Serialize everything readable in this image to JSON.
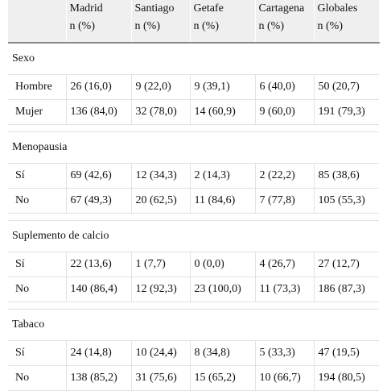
{
  "table": {
    "headers": [
      {
        "top": "",
        "bottom": ""
      },
      {
        "top": "Madrid",
        "bottom": "n (%)"
      },
      {
        "top": "Santiago",
        "bottom": "n (%)"
      },
      {
        "top": "Getafe",
        "bottom": "n (%)"
      },
      {
        "top": "Cartagena",
        "bottom": "n (%)"
      },
      {
        "top": "Globales",
        "bottom": "n (%)"
      }
    ],
    "groups": [
      {
        "title": "Sexo",
        "rows": [
          {
            "label": "Hombre",
            "cells": [
              "26 (16,0)",
              "9 (22,0)",
              "9 (39,1)",
              "6 (40,0)",
              "50 (20,7)"
            ]
          },
          {
            "label": "Mujer",
            "cells": [
              "136 (84,0)",
              "32 (78,0)",
              "14 (60,9)",
              "9 (60,0)",
              "191 (79,3)"
            ]
          }
        ]
      },
      {
        "title": "Menopausia",
        "rows": [
          {
            "label": "Sí",
            "cells": [
              "69 (42,6)",
              "12 (34,3)",
              "2 (14,3)",
              "2 (22,2)",
              "85 (38,6)"
            ]
          },
          {
            "label": "No",
            "cells": [
              "67 (49,3)",
              "20 (62,5)",
              "11 (84,6)",
              "7 (77,8)",
              "105 (55,3)"
            ]
          }
        ]
      },
      {
        "title": "Suplemento de calcio",
        "rows": [
          {
            "label": "Sí",
            "cells": [
              "22 (13,6)",
              "1 (7,7)",
              "0 (0,0)",
              "4 (26,7)",
              "27 (12,7)"
            ]
          },
          {
            "label": "No",
            "cells": [
              "140 (86,4)",
              "12 (92,3)",
              "23 (100,0)",
              "11 (73,3)",
              "186 (87,3)"
            ]
          }
        ]
      },
      {
        "title": "Tabaco",
        "rows": [
          {
            "label": "Sí",
            "cells": [
              "24 (14,8)",
              "10 (24,4)",
              "8 (34,8)",
              "5 (33,3)",
              "47 (19,5)"
            ]
          },
          {
            "label": "No",
            "cells": [
              "138 (85,2)",
              "31 (75,6)",
              "15 (65,2)",
              "10 (66,7)",
              "194 (80,5)"
            ]
          }
        ]
      }
    ]
  }
}
